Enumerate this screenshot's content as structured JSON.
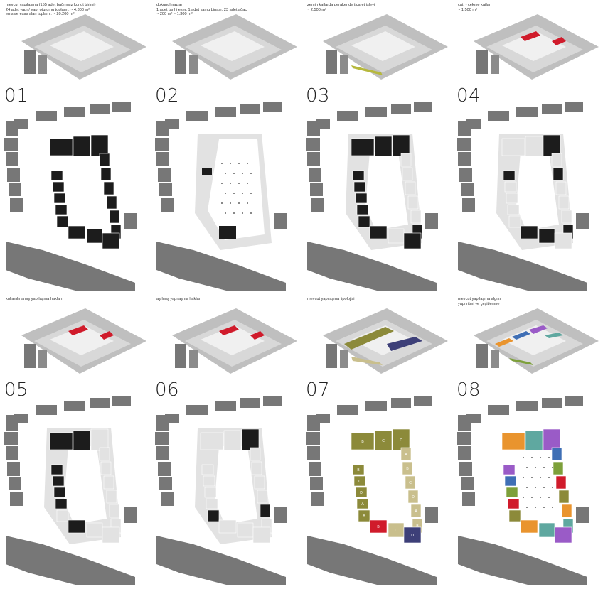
{
  "panels": [
    {
      "number": "01",
      "caption": "mevcut yapılaşma (155 adet bağımsız konut birimi)\n24 adet yapı / yapı oturumu toplamı: ~ 4.300 m²\nemsale esas alan toplamı: ~ 20.200 m²",
      "mode": "existing"
    },
    {
      "number": "02",
      "caption": "dokunulmazlar\n1 adet tarihi eser, 1 adet kamu binası, 23 adet ağaç\n~ 200 m²          ~ 1.300 m²",
      "mode": "untouchable"
    },
    {
      "number": "03",
      "caption": "zemin katlarda perakende ticaret işlevi\n~ 2.500 m²",
      "mode": "retail"
    },
    {
      "number": "04",
      "caption": "çatı - çekme katlar\n~ 1.500 m²",
      "mode": "roof"
    },
    {
      "number": "05",
      "caption": "kullanılmamış yapılaşma hakları",
      "mode": "unused"
    },
    {
      "number": "06",
      "caption": "aşılmış yapılaşma hakları",
      "mode": "exceeded"
    },
    {
      "number": "07",
      "caption": "mevcut yapılaşma tipolojisi",
      "mode": "typology"
    },
    {
      "number": "08",
      "caption": "mevcut yapılaşma algısı\nyapı ritmi ve çeşitlenme",
      "mode": "rhythm"
    }
  ],
  "typology_letters": [
    "A",
    "B",
    "C",
    "D"
  ],
  "colors": {
    "ground": "#bfbfbf",
    "street": "#9a9a9a",
    "building_grey": "#777777",
    "building_black": "#1c1c1c",
    "light": "#e2e2e2",
    "red": "#d01b2b",
    "olive": "#8c8a3a",
    "khaki": "#c9bf8d",
    "navy": "#3d3f78",
    "orange": "#e9942e",
    "teal": "#5fa8a0",
    "purple": "#9a5bc7",
    "blue": "#3f6fb5",
    "green": "#7da03a"
  }
}
